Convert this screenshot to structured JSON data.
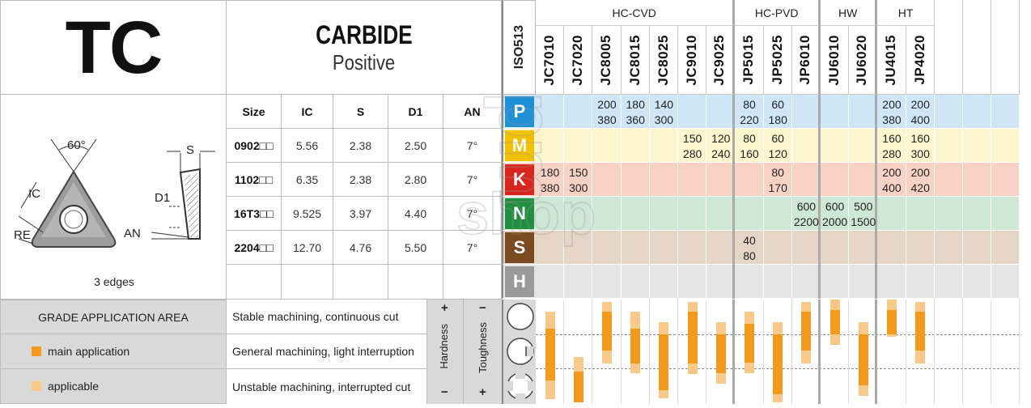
{
  "header": {
    "code": "TC",
    "material": "CARBIDE",
    "geometry": "Positive"
  },
  "diagram": {
    "angle": "60°",
    "ic": "IC",
    "re": "RE",
    "s": "S",
    "d1": "D1",
    "an": "AN",
    "edges": "3 edges"
  },
  "dims": {
    "columns": [
      "Size",
      "IC",
      "S",
      "D1",
      "AN"
    ],
    "rows": [
      {
        "size": "0902□□",
        "ic": "5.56",
        "s": "2.38",
        "d1": "2.50",
        "an": "7°"
      },
      {
        "size": "1102□□",
        "ic": "6.35",
        "s": "2.38",
        "d1": "2.80",
        "an": "7°"
      },
      {
        "size": "16T3□□",
        "ic": "9.525",
        "s": "3.97",
        "d1": "4.40",
        "an": "7°"
      },
      {
        "size": "2204□□",
        "ic": "12.70",
        "s": "4.76",
        "d1": "5.50",
        "an": "7°"
      }
    ]
  },
  "legend": {
    "title": "GRADE APPLICATION AREA",
    "main": "main application",
    "applicable": "applicable",
    "stable": "Stable machining, continuous cut",
    "general": "General machining, light interruption",
    "unstable": "Unstable machining, interrupted cut",
    "hardness": "Hardness",
    "toughness": "Toughness",
    "plus": "+",
    "minus": "−",
    "main_color": "#f39a1e",
    "applicable_color": "#f9c98a"
  },
  "iso_label": "ISO513",
  "groups": [
    {
      "name": "HC-CVD"
    },
    {
      "name": "HC-PVD"
    },
    {
      "name": "HW"
    },
    {
      "name": "HT"
    }
  ],
  "grades": [
    "JC7010",
    "JC7020",
    "JC8005",
    "JC8015",
    "JC8025",
    "JC9010",
    "JC9025",
    "JP5015",
    "JP5025",
    "JP6010",
    "JU6010",
    "JU6020",
    "JU4015",
    "JP4020"
  ],
  "materials": [
    {
      "letter": "P",
      "color": "#1f8fd6",
      "row_bg": "#cfe6f7"
    },
    {
      "letter": "M",
      "color": "#f2c200",
      "row_bg": "#fcf6cf"
    },
    {
      "letter": "K",
      "color": "#d9261c",
      "row_bg": "#f8d3c5"
    },
    {
      "letter": "N",
      "color": "#1f8f3f",
      "row_bg": "#cfe8d6"
    },
    {
      "letter": "S",
      "color": "#7a4a21",
      "row_bg": "#e4d5c6"
    },
    {
      "letter": "H",
      "color": "#9a9a9a",
      "row_bg": "#e5e5e5"
    }
  ],
  "speeds": [
    {
      "row": 0,
      "col": 2,
      "top": "200",
      "bottom": "380"
    },
    {
      "row": 0,
      "col": 3,
      "top": "180",
      "bottom": "360"
    },
    {
      "row": 0,
      "col": 4,
      "top": "140",
      "bottom": "300"
    },
    {
      "row": 0,
      "col": 7,
      "top": "80",
      "bottom": "220"
    },
    {
      "row": 0,
      "col": 8,
      "top": "60",
      "bottom": "180"
    },
    {
      "row": 0,
      "col": 12,
      "top": "200",
      "bottom": "380"
    },
    {
      "row": 0,
      "col": 13,
      "top": "200",
      "bottom": "400"
    },
    {
      "row": 1,
      "col": 5,
      "top": "150",
      "bottom": "280"
    },
    {
      "row": 1,
      "col": 6,
      "top": "120",
      "bottom": "240"
    },
    {
      "row": 1,
      "col": 7,
      "top": "80",
      "bottom": "160"
    },
    {
      "row": 1,
      "col": 8,
      "top": "60",
      "bottom": "120"
    },
    {
      "row": 1,
      "col": 12,
      "top": "160",
      "bottom": "280"
    },
    {
      "row": 1,
      "col": 13,
      "top": "160",
      "bottom": "300"
    },
    {
      "row": 2,
      "col": 0,
      "top": "180",
      "bottom": "380"
    },
    {
      "row": 2,
      "col": 1,
      "top": "150",
      "bottom": "300"
    },
    {
      "row": 2,
      "col": 8,
      "top": "80",
      "bottom": "170"
    },
    {
      "row": 2,
      "col": 12,
      "top": "200",
      "bottom": "400"
    },
    {
      "row": 2,
      "col": 13,
      "top": "200",
      "bottom": "420"
    },
    {
      "row": 3,
      "col": 9,
      "top": "600",
      "bottom": "2200"
    },
    {
      "row": 3,
      "col": 10,
      "top": "600",
      "bottom": "2000"
    },
    {
      "row": 3,
      "col": 11,
      "top": "500",
      "bottom": "1500"
    },
    {
      "row": 4,
      "col": 7,
      "top": "40",
      "bottom": "80"
    }
  ],
  "application_bars": [
    {
      "col": 0,
      "app_from": 0.12,
      "main_from": 0.28,
      "main_to": 0.78,
      "app_to": 0.97
    },
    {
      "col": 1,
      "app_from": 0.56,
      "main_from": 0.7,
      "main_to": 1.0,
      "app_to": 1.0
    },
    {
      "col": 2,
      "app_from": 0.02,
      "main_from": 0.12,
      "main_to": 0.5,
      "app_to": 0.62
    },
    {
      "col": 3,
      "app_from": 0.12,
      "main_from": 0.28,
      "main_to": 0.62,
      "app_to": 0.72
    },
    {
      "col": 4,
      "app_from": 0.22,
      "main_from": 0.34,
      "main_to": 0.88,
      "app_to": 0.96
    },
    {
      "col": 5,
      "app_from": 0.02,
      "main_from": 0.12,
      "main_to": 0.62,
      "app_to": 0.72
    },
    {
      "col": 6,
      "app_from": 0.22,
      "main_from": 0.34,
      "main_to": 0.72,
      "app_to": 0.82
    },
    {
      "col": 7,
      "app_from": 0.12,
      "main_from": 0.24,
      "main_to": 0.62,
      "app_to": 0.72
    },
    {
      "col": 8,
      "app_from": 0.22,
      "main_from": 0.34,
      "main_to": 0.92,
      "app_to": 1.0
    },
    {
      "col": 9,
      "app_from": 0.02,
      "main_from": 0.12,
      "main_to": 0.5,
      "app_to": 0.62
    },
    {
      "col": 10,
      "app_from": 0.0,
      "main_from": 0.1,
      "main_to": 0.34,
      "app_to": 0.44
    },
    {
      "col": 11,
      "app_from": 0.22,
      "main_from": 0.34,
      "main_to": 0.84,
      "app_to": 0.94
    },
    {
      "col": 12,
      "app_from": 0.0,
      "main_from": 0.1,
      "main_to": 0.34,
      "app_to": 0.36
    },
    {
      "col": 13,
      "app_from": 0.02,
      "main_from": 0.12,
      "main_to": 0.5,
      "app_to": 0.62
    }
  ],
  "watermark": {
    "line1": "pm",
    "line2": "shop"
  }
}
